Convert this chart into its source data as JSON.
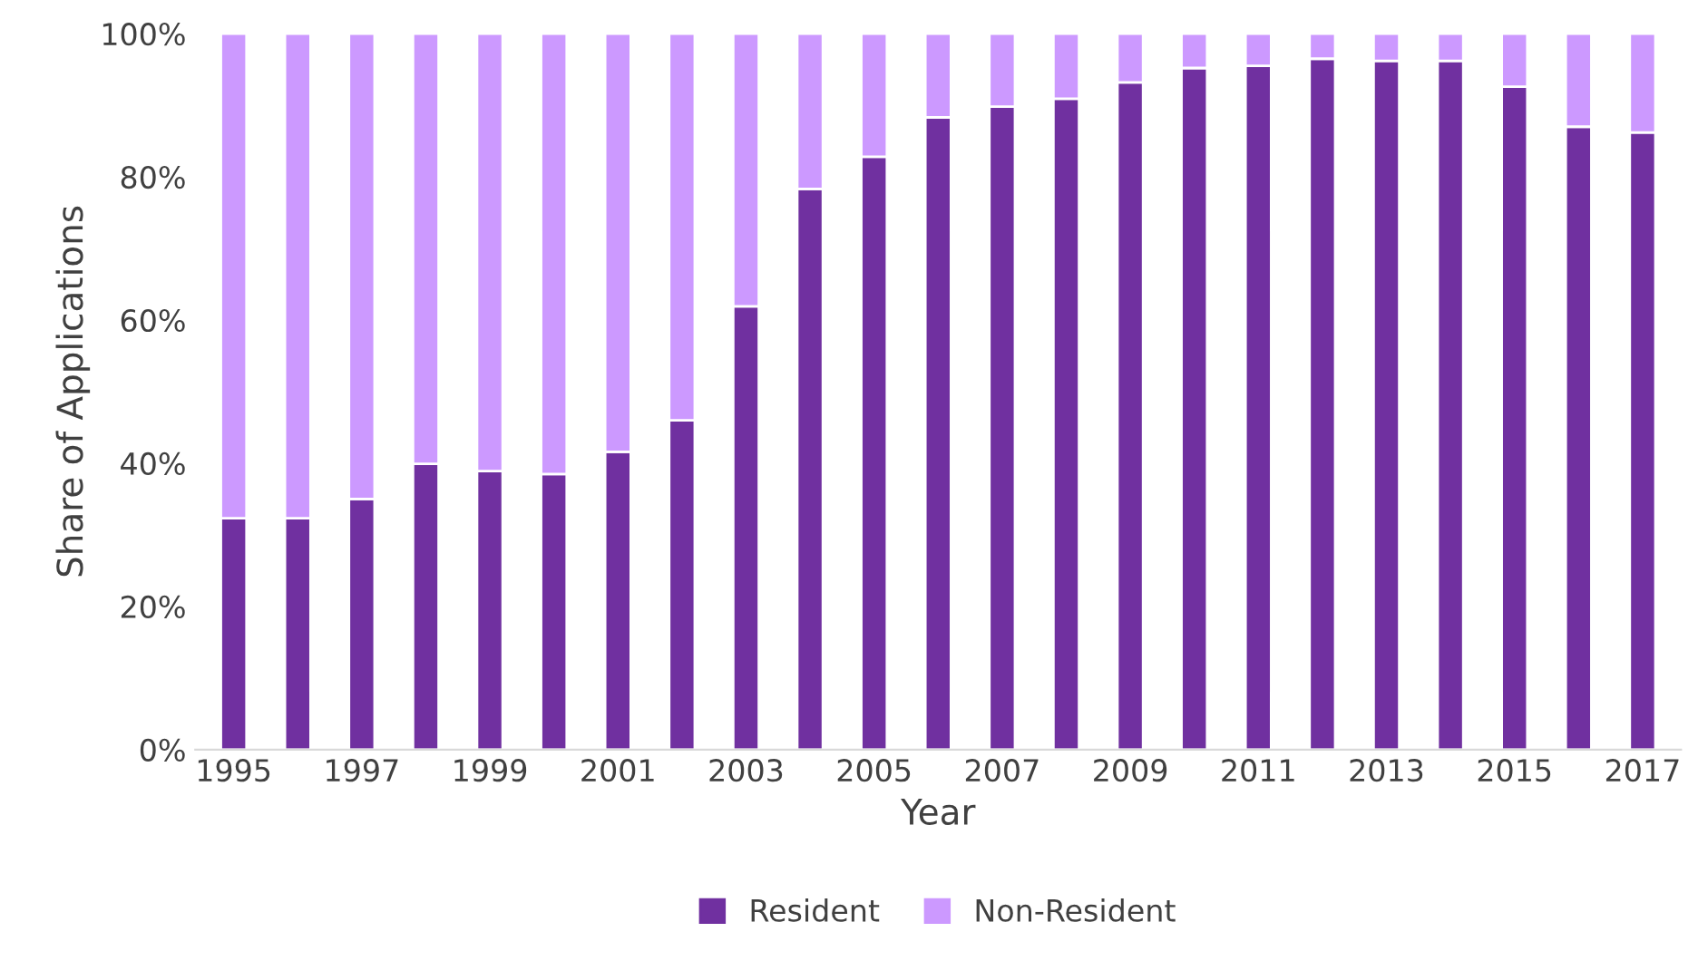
{
  "chart_data": {
    "type": "bar",
    "stacked": true,
    "xlabel": "Year",
    "ylabel": "Share of Applications",
    "categories": [
      "1995",
      null,
      "1997",
      null,
      "1999",
      null,
      "2001",
      null,
      "2003",
      null,
      "2005",
      null,
      "2007",
      null,
      "2009",
      null,
      "2011",
      null,
      "2013",
      null,
      "2015",
      null,
      "2017"
    ],
    "series": [
      {
        "name": "Resident",
        "color": "#7030a0",
        "values": [
          32.3,
          32.3,
          35.0,
          39.9,
          38.9,
          38.5,
          41.6,
          46.0,
          61.9,
          78.3,
          82.8,
          88.3,
          89.8,
          90.9,
          93.2,
          95.2,
          95.5,
          96.5,
          96.2,
          96.2,
          92.6,
          87.0,
          86.2
        ]
      },
      {
        "name": "Non-Resident",
        "color": "#cc99ff",
        "values": [
          67.7,
          67.7,
          65.0,
          60.1,
          61.1,
          61.5,
          58.4,
          54.0,
          38.1,
          21.7,
          17.2,
          11.7,
          10.2,
          9.1,
          6.8,
          4.8,
          4.5,
          3.5,
          3.8,
          3.8,
          7.4,
          13.0,
          13.8
        ]
      }
    ],
    "ylim": [
      0,
      100
    ],
    "yticks": [
      {
        "value": 0,
        "label": "0%"
      },
      {
        "value": 20,
        "label": "20%"
      },
      {
        "value": 40,
        "label": "40%"
      },
      {
        "value": 60,
        "label": "60%"
      },
      {
        "value": 80,
        "label": "80%"
      },
      {
        "value": 100,
        "label": "100%"
      }
    ],
    "grid": false,
    "legend": "bottom"
  }
}
